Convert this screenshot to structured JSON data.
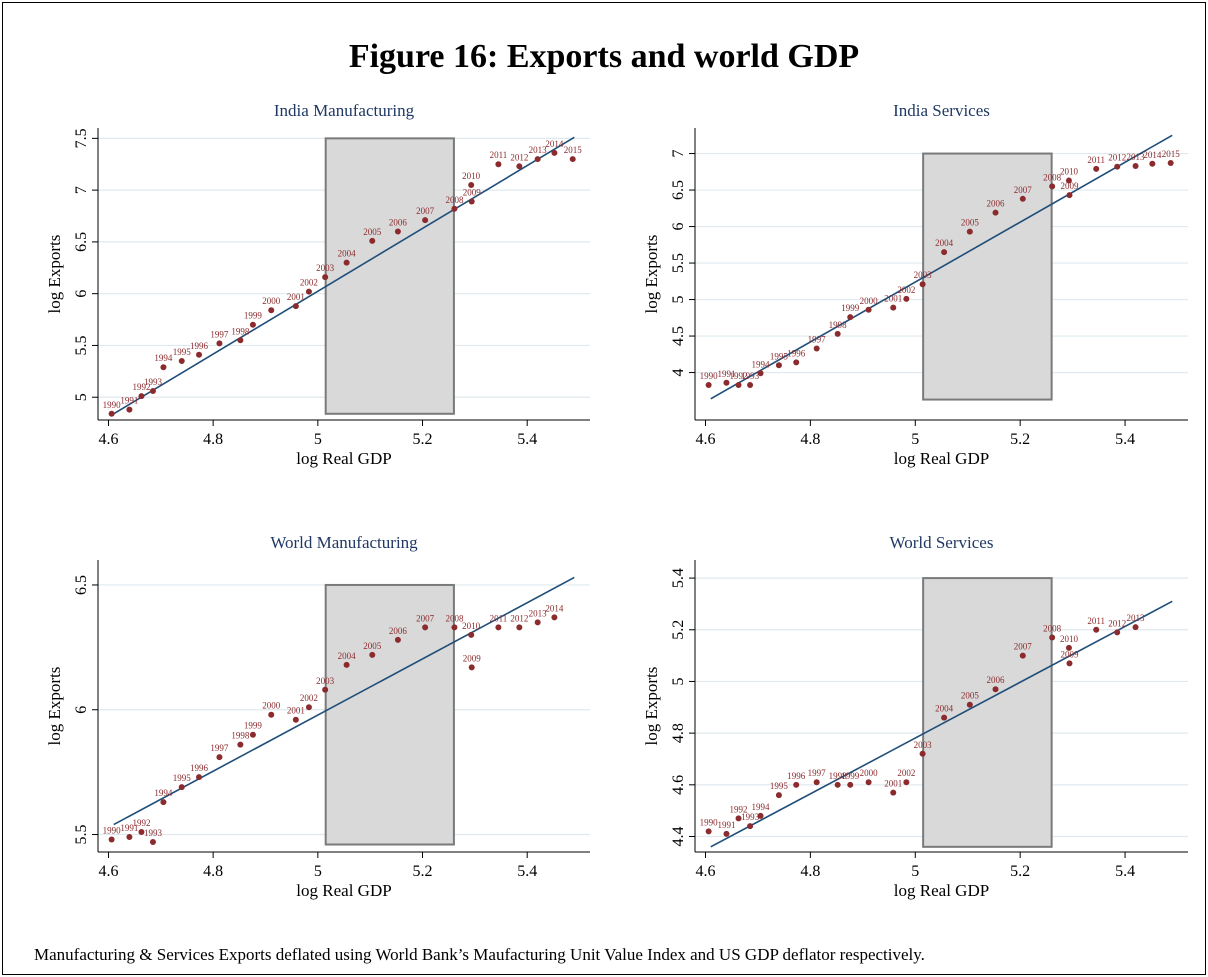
{
  "figure": {
    "title": "Figure 16: Exports and world GDP",
    "note": "Manufacturing & Services Exports deflated using World Bank’s Maufacturing Unit Value Index and US GDP deflator respectively."
  },
  "colors": {
    "point": "#8b2b2e",
    "line": "#1f4e79",
    "grid": "#dfe9ef",
    "shade_fill": "#d9d9d9",
    "shade_stroke": "#7a7a7a",
    "panel_title": "#1f3864"
  },
  "chart_data": [
    {
      "type": "scatter",
      "title": "India Manufacturing",
      "xlabel": "log Real GDP",
      "ylabel": "log Exports",
      "xlim": [
        4.58,
        5.52
      ],
      "ylim": [
        4.78,
        7.6
      ],
      "xticks": [
        4.6,
        4.8,
        5.0,
        5.2,
        5.4
      ],
      "xtick_labels": [
        "4.6",
        "4.8",
        "5",
        "5.2",
        "5.4"
      ],
      "yticks": [
        5,
        5.5,
        6,
        6.5,
        7,
        7.5
      ],
      "ytick_labels": [
        "5",
        "5.5",
        "6",
        "6.5",
        "7",
        "7.5"
      ],
      "grid": true,
      "shaded_region": {
        "x": [
          5.015,
          5.26
        ],
        "y": [
          4.84,
          7.5
        ]
      },
      "fit_line": {
        "x": [
          4.61,
          5.49
        ],
        "y": [
          4.84,
          7.51
        ]
      },
      "points": [
        {
          "label": "1990",
          "x": 4.606,
          "y": 4.84
        },
        {
          "label": "1991",
          "x": 4.64,
          "y": 4.88
        },
        {
          "label": "1992",
          "x": 4.663,
          "y": 5.01
        },
        {
          "label": "1993",
          "x": 4.685,
          "y": 5.06
        },
        {
          "label": "1994",
          "x": 4.705,
          "y": 5.29
        },
        {
          "label": "1995",
          "x": 4.74,
          "y": 5.35
        },
        {
          "label": "1996",
          "x": 4.773,
          "y": 5.41
        },
        {
          "label": "1997",
          "x": 4.812,
          "y": 5.52
        },
        {
          "label": "1998",
          "x": 4.852,
          "y": 5.55
        },
        {
          "label": "1999",
          "x": 4.876,
          "y": 5.7
        },
        {
          "label": "2000",
          "x": 4.911,
          "y": 5.84
        },
        {
          "label": "2001",
          "x": 4.958,
          "y": 5.88
        },
        {
          "label": "2002",
          "x": 4.983,
          "y": 6.02
        },
        {
          "label": "2003",
          "x": 5.014,
          "y": 6.16
        },
        {
          "label": "2004",
          "x": 5.055,
          "y": 6.3
        },
        {
          "label": "2005",
          "x": 5.104,
          "y": 6.51
        },
        {
          "label": "2006",
          "x": 5.153,
          "y": 6.6
        },
        {
          "label": "2007",
          "x": 5.205,
          "y": 6.71
        },
        {
          "label": "2008",
          "x": 5.261,
          "y": 6.82
        },
        {
          "label": "2009",
          "x": 5.294,
          "y": 6.89
        },
        {
          "label": "2010",
          "x": 5.293,
          "y": 7.05
        },
        {
          "label": "2011",
          "x": 5.345,
          "y": 7.25
        },
        {
          "label": "2012",
          "x": 5.385,
          "y": 7.23
        },
        {
          "label": "2013",
          "x": 5.42,
          "y": 7.3
        },
        {
          "label": "2014",
          "x": 5.452,
          "y": 7.36
        },
        {
          "label": "2015",
          "x": 5.487,
          "y": 7.3
        }
      ]
    },
    {
      "type": "scatter",
      "title": "India Services",
      "xlabel": "log Real GDP",
      "ylabel": "log Exports",
      "xlim": [
        4.58,
        5.52
      ],
      "ylim": [
        3.35,
        7.35
      ],
      "xticks": [
        4.6,
        4.8,
        5.0,
        5.2,
        5.4
      ],
      "xtick_labels": [
        "4.6",
        "4.8",
        "5",
        "5.2",
        "5.4"
      ],
      "yticks": [
        4,
        4.5,
        5,
        5.5,
        6,
        6.5,
        7
      ],
      "ytick_labels": [
        "4",
        "4.5",
        "5",
        "5.5",
        "6",
        "6.5",
        "7"
      ],
      "grid": true,
      "shaded_region": {
        "x": [
          5.015,
          5.26
        ],
        "y": [
          3.63,
          7.0
        ]
      },
      "fit_line": {
        "x": [
          4.61,
          5.49
        ],
        "y": [
          3.64,
          7.25
        ]
      },
      "points": [
        {
          "label": "1990",
          "x": 4.606,
          "y": 3.83
        },
        {
          "label": "1991",
          "x": 4.64,
          "y": 3.86
        },
        {
          "label": "1992",
          "x": 4.663,
          "y": 3.83
        },
        {
          "label": "1993",
          "x": 4.685,
          "y": 3.83
        },
        {
          "label": "1994",
          "x": 4.705,
          "y": 3.99
        },
        {
          "label": "1995",
          "x": 4.74,
          "y": 4.1
        },
        {
          "label": "1996",
          "x": 4.773,
          "y": 4.14
        },
        {
          "label": "1997",
          "x": 4.812,
          "y": 4.33
        },
        {
          "label": "1998",
          "x": 4.852,
          "y": 4.53
        },
        {
          "label": "1999",
          "x": 4.876,
          "y": 4.76
        },
        {
          "label": "2000",
          "x": 4.911,
          "y": 4.86
        },
        {
          "label": "2001",
          "x": 4.958,
          "y": 4.89
        },
        {
          "label": "2002",
          "x": 4.983,
          "y": 5.01
        },
        {
          "label": "2003",
          "x": 5.014,
          "y": 5.21
        },
        {
          "label": "2004",
          "x": 5.055,
          "y": 5.65
        },
        {
          "label": "2005",
          "x": 5.104,
          "y": 5.93
        },
        {
          "label": "2006",
          "x": 5.153,
          "y": 6.19
        },
        {
          "label": "2007",
          "x": 5.205,
          "y": 6.38
        },
        {
          "label": "2008",
          "x": 5.261,
          "y": 6.55
        },
        {
          "label": "2009",
          "x": 5.294,
          "y": 6.43
        },
        {
          "label": "2010",
          "x": 5.293,
          "y": 6.63
        },
        {
          "label": "2011",
          "x": 5.345,
          "y": 6.79
        },
        {
          "label": "2012",
          "x": 5.385,
          "y": 6.82
        },
        {
          "label": "2013",
          "x": 5.42,
          "y": 6.83
        },
        {
          "label": "2014",
          "x": 5.452,
          "y": 6.86
        },
        {
          "label": "2015",
          "x": 5.487,
          "y": 6.87
        }
      ]
    },
    {
      "type": "scatter",
      "title": "World Manufacturing",
      "xlabel": "log Real GDP",
      "ylabel": "log Exports",
      "xlim": [
        4.58,
        5.52
      ],
      "ylim": [
        5.43,
        6.6
      ],
      "xticks": [
        4.6,
        4.8,
        5.0,
        5.2,
        5.4
      ],
      "xtick_labels": [
        "4.6",
        "4.8",
        "5",
        "5.2",
        "5.4"
      ],
      "yticks": [
        5.5,
        6,
        6.5
      ],
      "ytick_labels": [
        "5.5",
        "6",
        "6.5"
      ],
      "grid": true,
      "shaded_region": {
        "x": [
          5.015,
          5.26
        ],
        "y": [
          5.46,
          6.5
        ]
      },
      "fit_line": {
        "x": [
          4.61,
          5.49
        ],
        "y": [
          5.54,
          6.53
        ]
      },
      "points": [
        {
          "label": "1990",
          "x": 4.606,
          "y": 5.48
        },
        {
          "label": "1991",
          "x": 4.64,
          "y": 5.49
        },
        {
          "label": "1992",
          "x": 4.663,
          "y": 5.51
        },
        {
          "label": "1993",
          "x": 4.685,
          "y": 5.47
        },
        {
          "label": "1994",
          "x": 4.705,
          "y": 5.63
        },
        {
          "label": "1995",
          "x": 4.74,
          "y": 5.69
        },
        {
          "label": "1996",
          "x": 4.773,
          "y": 5.73
        },
        {
          "label": "1997",
          "x": 4.812,
          "y": 5.81
        },
        {
          "label": "1998",
          "x": 4.852,
          "y": 5.86
        },
        {
          "label": "1999",
          "x": 4.876,
          "y": 5.9
        },
        {
          "label": "2000",
          "x": 4.911,
          "y": 5.98
        },
        {
          "label": "2001",
          "x": 4.958,
          "y": 5.96
        },
        {
          "label": "2002",
          "x": 4.983,
          "y": 6.01
        },
        {
          "label": "2003",
          "x": 5.014,
          "y": 6.08
        },
        {
          "label": "2004",
          "x": 5.055,
          "y": 6.18
        },
        {
          "label": "2005",
          "x": 5.104,
          "y": 6.22
        },
        {
          "label": "2006",
          "x": 5.153,
          "y": 6.28
        },
        {
          "label": "2007",
          "x": 5.205,
          "y": 6.33
        },
        {
          "label": "2008",
          "x": 5.261,
          "y": 6.33
        },
        {
          "label": "2009",
          "x": 5.294,
          "y": 6.17
        },
        {
          "label": "2010",
          "x": 5.293,
          "y": 6.3
        },
        {
          "label": "2011",
          "x": 5.345,
          "y": 6.33
        },
        {
          "label": "2012",
          "x": 5.385,
          "y": 6.33
        },
        {
          "label": "2013",
          "x": 5.42,
          "y": 6.35
        },
        {
          "label": "2014",
          "x": 5.452,
          "y": 6.37
        }
      ]
    },
    {
      "type": "scatter",
      "title": "World Services",
      "xlabel": "log Real GDP",
      "ylabel": "log Exports",
      "xlim": [
        4.58,
        5.52
      ],
      "ylim": [
        4.34,
        5.47
      ],
      "xticks": [
        4.6,
        4.8,
        5.0,
        5.2,
        5.4
      ],
      "xtick_labels": [
        "4.6",
        "4.8",
        "5",
        "5.2",
        "5.4"
      ],
      "yticks": [
        4.4,
        4.6,
        4.8,
        5,
        5.2,
        5.4
      ],
      "ytick_labels": [
        "4.4",
        "4.6",
        "4.8",
        "5",
        "5.2",
        "5.4"
      ],
      "grid": true,
      "shaded_region": {
        "x": [
          5.015,
          5.26
        ],
        "y": [
          4.36,
          5.4
        ]
      },
      "fit_line": {
        "x": [
          4.61,
          5.49
        ],
        "y": [
          4.36,
          5.31
        ]
      },
      "points": [
        {
          "label": "1990",
          "x": 4.606,
          "y": 4.42
        },
        {
          "label": "1991",
          "x": 4.64,
          "y": 4.41
        },
        {
          "label": "1992",
          "x": 4.663,
          "y": 4.47
        },
        {
          "label": "1993",
          "x": 4.685,
          "y": 4.44
        },
        {
          "label": "1994",
          "x": 4.705,
          "y": 4.48
        },
        {
          "label": "1995",
          "x": 4.74,
          "y": 4.56
        },
        {
          "label": "1996",
          "x": 4.773,
          "y": 4.6
        },
        {
          "label": "1997",
          "x": 4.812,
          "y": 4.61
        },
        {
          "label": "1998",
          "x": 4.852,
          "y": 4.6
        },
        {
          "label": "1999",
          "x": 4.876,
          "y": 4.6
        },
        {
          "label": "2000",
          "x": 4.911,
          "y": 4.61
        },
        {
          "label": "2001",
          "x": 4.958,
          "y": 4.57
        },
        {
          "label": "2002",
          "x": 4.983,
          "y": 4.61
        },
        {
          "label": "2003",
          "x": 5.014,
          "y": 4.72
        },
        {
          "label": "2004",
          "x": 5.055,
          "y": 4.86
        },
        {
          "label": "2005",
          "x": 5.104,
          "y": 4.91
        },
        {
          "label": "2006",
          "x": 5.153,
          "y": 4.97
        },
        {
          "label": "2007",
          "x": 5.205,
          "y": 5.1
        },
        {
          "label": "2008",
          "x": 5.261,
          "y": 5.17
        },
        {
          "label": "2009",
          "x": 5.294,
          "y": 5.07
        },
        {
          "label": "2010",
          "x": 5.293,
          "y": 5.13
        },
        {
          "label": "2011",
          "x": 5.345,
          "y": 5.2
        },
        {
          "label": "2012",
          "x": 5.385,
          "y": 5.19
        },
        {
          "label": "2013",
          "x": 5.42,
          "y": 5.21
        }
      ]
    }
  ]
}
